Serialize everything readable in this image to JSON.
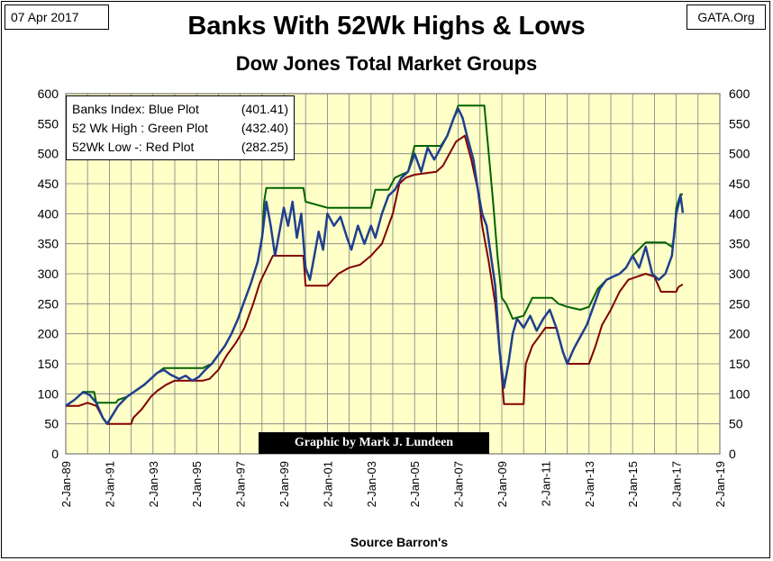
{
  "header": {
    "date": "07 Apr 2017",
    "source_site": "GATA.Org",
    "title": "Banks With 52Wk Highs & Lows",
    "subtitle": "Dow Jones Total Market Groups"
  },
  "legend": {
    "items": [
      {
        "label": "Banks Index: Blue Plot",
        "value": "(401.41)"
      },
      {
        "label": "52 Wk High : Green Plot",
        "value": "(432.40)"
      },
      {
        "label": "52Wk Low -: Red Plot",
        "value": "(282.25)"
      }
    ]
  },
  "credit": "Graphic by Mark J. Lundeen",
  "footer": {
    "source": "Source Barron's"
  },
  "chart_data": {
    "type": "line",
    "title": "Banks With 52Wk Highs & Lows",
    "subtitle": "Dow Jones Total Market Groups",
    "xlabel": "Source Barron's",
    "ylabel": "",
    "xlim": [
      1989.0,
      2019.0
    ],
    "ylim": [
      0,
      600
    ],
    "yticks": [
      0,
      50,
      100,
      150,
      200,
      250,
      300,
      350,
      400,
      450,
      500,
      550,
      600
    ],
    "xtick_labels": [
      "2-Jan-89",
      "2-Jan-91",
      "2-Jan-93",
      "2-Jan-95",
      "2-Jan-97",
      "2-Jan-99",
      "2-Jan-01",
      "2-Jan-03",
      "2-Jan-05",
      "2-Jan-07",
      "2-Jan-09",
      "2-Jan-11",
      "2-Jan-13",
      "2-Jan-15",
      "2-Jan-17",
      "2-Jan-19"
    ],
    "xtick_years": [
      1989,
      1991,
      1993,
      1995,
      1997,
      1999,
      2001,
      2003,
      2005,
      2007,
      2009,
      2011,
      2013,
      2015,
      2017,
      2019
    ],
    "grid": true,
    "background": "#ffffc8",
    "colors": {
      "index": "#1f3f8f",
      "high": "#006400",
      "low": "#800000"
    },
    "series": [
      {
        "name": "Banks Index: Blue Plot",
        "points": [
          [
            1989.0,
            80
          ],
          [
            1989.4,
            90
          ],
          [
            1989.8,
            103
          ],
          [
            1990.1,
            98
          ],
          [
            1990.4,
            85
          ],
          [
            1990.7,
            60
          ],
          [
            1990.9,
            50
          ],
          [
            1991.1,
            62
          ],
          [
            1991.4,
            80
          ],
          [
            1991.8,
            95
          ],
          [
            1992.2,
            105
          ],
          [
            1992.6,
            115
          ],
          [
            1992.9,
            125
          ],
          [
            1993.2,
            135
          ],
          [
            1993.5,
            140
          ],
          [
            1993.8,
            132
          ],
          [
            1994.2,
            125
          ],
          [
            1994.5,
            130
          ],
          [
            1994.8,
            122
          ],
          [
            1995.1,
            128
          ],
          [
            1995.4,
            140
          ],
          [
            1995.7,
            150
          ],
          [
            1996.0,
            165
          ],
          [
            1996.3,
            180
          ],
          [
            1996.6,
            200
          ],
          [
            1996.9,
            225
          ],
          [
            1997.2,
            255
          ],
          [
            1997.5,
            285
          ],
          [
            1997.8,
            320
          ],
          [
            1998.0,
            360
          ],
          [
            1998.2,
            420
          ],
          [
            1998.4,
            380
          ],
          [
            1998.6,
            330
          ],
          [
            1998.8,
            370
          ],
          [
            1999.0,
            410
          ],
          [
            1999.2,
            380
          ],
          [
            1999.4,
            420
          ],
          [
            1999.6,
            360
          ],
          [
            1999.8,
            400
          ],
          [
            2000.0,
            310
          ],
          [
            2000.2,
            290
          ],
          [
            2000.4,
            330
          ],
          [
            2000.6,
            370
          ],
          [
            2000.8,
            340
          ],
          [
            2001.0,
            400
          ],
          [
            2001.3,
            380
          ],
          [
            2001.6,
            395
          ],
          [
            2001.9,
            360
          ],
          [
            2002.1,
            340
          ],
          [
            2002.4,
            380
          ],
          [
            2002.7,
            350
          ],
          [
            2003.0,
            380
          ],
          [
            2003.2,
            360
          ],
          [
            2003.5,
            400
          ],
          [
            2003.8,
            430
          ],
          [
            2004.1,
            440
          ],
          [
            2004.4,
            460
          ],
          [
            2004.7,
            470
          ],
          [
            2005.0,
            500
          ],
          [
            2005.3,
            470
          ],
          [
            2005.6,
            510
          ],
          [
            2005.9,
            490
          ],
          [
            2006.2,
            510
          ],
          [
            2006.5,
            530
          ],
          [
            2006.8,
            560
          ],
          [
            2007.0,
            575
          ],
          [
            2007.2,
            560
          ],
          [
            2007.4,
            530
          ],
          [
            2007.7,
            490
          ],
          [
            2007.9,
            440
          ],
          [
            2008.1,
            400
          ],
          [
            2008.3,
            380
          ],
          [
            2008.5,
            330
          ],
          [
            2008.7,
            280
          ],
          [
            2008.9,
            170
          ],
          [
            2009.1,
            110
          ],
          [
            2009.3,
            150
          ],
          [
            2009.5,
            200
          ],
          [
            2009.7,
            225
          ],
          [
            2010.0,
            210
          ],
          [
            2010.3,
            230
          ],
          [
            2010.6,
            205
          ],
          [
            2010.9,
            225
          ],
          [
            2011.2,
            240
          ],
          [
            2011.5,
            210
          ],
          [
            2011.8,
            170
          ],
          [
            2012.0,
            150
          ],
          [
            2012.3,
            175
          ],
          [
            2012.6,
            195
          ],
          [
            2012.9,
            215
          ],
          [
            2013.2,
            245
          ],
          [
            2013.5,
            275
          ],
          [
            2013.8,
            290
          ],
          [
            2014.1,
            295
          ],
          [
            2014.4,
            300
          ],
          [
            2014.7,
            310
          ],
          [
            2015.0,
            330
          ],
          [
            2015.3,
            310
          ],
          [
            2015.6,
            345
          ],
          [
            2015.9,
            300
          ],
          [
            2016.2,
            290
          ],
          [
            2016.5,
            300
          ],
          [
            2016.8,
            330
          ],
          [
            2017.0,
            400
          ],
          [
            2017.2,
            430
          ],
          [
            2017.3,
            401.41
          ]
        ]
      },
      {
        "name": "52 Wk High : Green Plot",
        "points": [
          [
            1989.0,
            80
          ],
          [
            1989.4,
            90
          ],
          [
            1989.8,
            103
          ],
          [
            1990.3,
            103
          ],
          [
            1990.4,
            85
          ],
          [
            1991.3,
            85
          ],
          [
            1991.4,
            90
          ],
          [
            1991.8,
            95
          ],
          [
            1992.2,
            105
          ],
          [
            1992.6,
            115
          ],
          [
            1992.9,
            125
          ],
          [
            1993.2,
            135
          ],
          [
            1993.5,
            143
          ],
          [
            1995.3,
            143
          ],
          [
            1995.4,
            145
          ],
          [
            1995.7,
            150
          ],
          [
            1996.0,
            165
          ],
          [
            1996.3,
            180
          ],
          [
            1996.6,
            200
          ],
          [
            1996.9,
            225
          ],
          [
            1997.2,
            255
          ],
          [
            1997.5,
            285
          ],
          [
            1997.8,
            320
          ],
          [
            1998.0,
            360
          ],
          [
            1998.1,
            420
          ],
          [
            1998.2,
            443
          ],
          [
            1999.9,
            443
          ],
          [
            2000.0,
            420
          ],
          [
            2001.0,
            410
          ],
          [
            2003.0,
            410
          ],
          [
            2003.2,
            440
          ],
          [
            2003.8,
            440
          ],
          [
            2004.1,
            460
          ],
          [
            2004.7,
            470
          ],
          [
            2005.0,
            513
          ],
          [
            2006.2,
            513
          ],
          [
            2006.5,
            530
          ],
          [
            2006.8,
            560
          ],
          [
            2007.0,
            580
          ],
          [
            2008.2,
            580
          ],
          [
            2008.4,
            500
          ],
          [
            2008.6,
            420
          ],
          [
            2008.8,
            330
          ],
          [
            2009.0,
            260
          ],
          [
            2009.2,
            250
          ],
          [
            2009.5,
            225
          ],
          [
            2010.0,
            230
          ],
          [
            2010.4,
            260
          ],
          [
            2011.3,
            260
          ],
          [
            2011.6,
            250
          ],
          [
            2012.0,
            245
          ],
          [
            2012.6,
            240
          ],
          [
            2013.0,
            245
          ],
          [
            2013.4,
            275
          ],
          [
            2013.8,
            290
          ],
          [
            2014.4,
            300
          ],
          [
            2014.7,
            310
          ],
          [
            2015.0,
            330
          ],
          [
            2015.6,
            352
          ],
          [
            2016.5,
            352
          ],
          [
            2016.8,
            345
          ],
          [
            2016.9,
            360
          ],
          [
            2017.0,
            410
          ],
          [
            2017.2,
            432.4
          ],
          [
            2017.3,
            432.4
          ]
        ]
      },
      {
        "name": "52Wk Low -: Red Plot",
        "points": [
          [
            1989.0,
            80
          ],
          [
            1989.6,
            80
          ],
          [
            1990.0,
            85
          ],
          [
            1990.4,
            80
          ],
          [
            1990.7,
            60
          ],
          [
            1990.9,
            50
          ],
          [
            1992.0,
            50
          ],
          [
            1992.1,
            60
          ],
          [
            1992.5,
            75
          ],
          [
            1992.9,
            95
          ],
          [
            1993.2,
            105
          ],
          [
            1993.6,
            115
          ],
          [
            1994.0,
            122
          ],
          [
            1995.3,
            122
          ],
          [
            1995.6,
            125
          ],
          [
            1996.0,
            140
          ],
          [
            1996.4,
            165
          ],
          [
            1996.8,
            185
          ],
          [
            1997.2,
            210
          ],
          [
            1997.6,
            250
          ],
          [
            1997.9,
            285
          ],
          [
            1998.1,
            300
          ],
          [
            1998.5,
            330
          ],
          [
            1999.5,
            330
          ],
          [
            1999.9,
            330
          ],
          [
            2000.0,
            280
          ],
          [
            2001.0,
            280
          ],
          [
            2001.5,
            300
          ],
          [
            2002.0,
            310
          ],
          [
            2002.5,
            315
          ],
          [
            2003.0,
            330
          ],
          [
            2003.5,
            350
          ],
          [
            2004.0,
            400
          ],
          [
            2004.3,
            450
          ],
          [
            2004.6,
            460
          ],
          [
            2005.0,
            465
          ],
          [
            2006.0,
            470
          ],
          [
            2006.3,
            480
          ],
          [
            2006.6,
            500
          ],
          [
            2006.9,
            520
          ],
          [
            2007.3,
            530
          ],
          [
            2007.6,
            490
          ],
          [
            2007.9,
            440
          ],
          [
            2008.1,
            380
          ],
          [
            2008.4,
            320
          ],
          [
            2008.7,
            250
          ],
          [
            2008.9,
            170
          ],
          [
            2009.1,
            83
          ],
          [
            2010.0,
            83
          ],
          [
            2010.1,
            150
          ],
          [
            2010.4,
            180
          ],
          [
            2010.8,
            200
          ],
          [
            2011.0,
            210
          ],
          [
            2011.5,
            210
          ],
          [
            2011.8,
            170
          ],
          [
            2012.0,
            150
          ],
          [
            2013.0,
            150
          ],
          [
            2013.3,
            180
          ],
          [
            2013.6,
            215
          ],
          [
            2014.0,
            240
          ],
          [
            2014.4,
            270
          ],
          [
            2014.8,
            290
          ],
          [
            2015.2,
            295
          ],
          [
            2015.6,
            300
          ],
          [
            2016.0,
            295
          ],
          [
            2016.3,
            270
          ],
          [
            2017.0,
            270
          ],
          [
            2017.1,
            278
          ],
          [
            2017.3,
            282.25
          ]
        ]
      }
    ]
  }
}
